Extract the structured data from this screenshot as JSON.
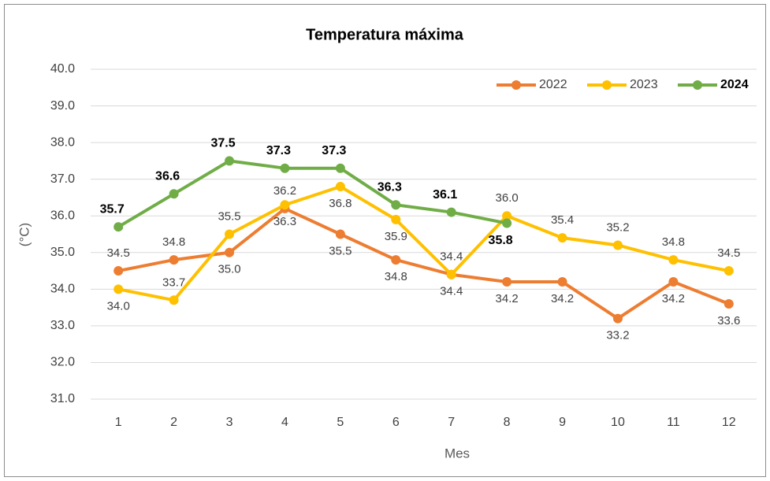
{
  "chart_data": {
    "type": "line",
    "title": "Temperatura máxima",
    "x_label": "Mes",
    "y_label": "(°C)",
    "categories": [
      1,
      2,
      3,
      4,
      5,
      6,
      7,
      8,
      9,
      10,
      11,
      12
    ],
    "series": [
      {
        "name": "2022",
        "color": "#ed7d31",
        "values": [
          34.5,
          34.8,
          35.0,
          36.2,
          35.5,
          34.8,
          34.4,
          34.2,
          34.2,
          33.2,
          34.2,
          33.6
        ],
        "value_labels": [
          "34.5",
          "34.8",
          "35.0",
          "36.2",
          "35.5",
          "34.8",
          "34.4",
          "34.2",
          "34.2",
          "33.2",
          "34.2",
          "33.6"
        ]
      },
      {
        "name": "2023",
        "color": "#ffc000",
        "values": [
          34.0,
          33.7,
          35.5,
          36.3,
          36.8,
          35.9,
          34.4,
          36.0,
          35.4,
          35.2,
          34.8,
          34.5
        ],
        "value_labels": [
          "34.0",
          "33.7",
          "35.5",
          "36.3",
          "36.8",
          "35.9",
          "34.4",
          "36.0",
          "35.4",
          "35.2",
          "34.8",
          "34.5"
        ]
      },
      {
        "name": "2024",
        "color": "#70ad47",
        "values": [
          35.7,
          36.6,
          37.5,
          37.3,
          37.3,
          36.3,
          36.1,
          35.8,
          null,
          null,
          null,
          null
        ],
        "value_labels": [
          "35.7",
          "36.6",
          "37.5",
          "37.3",
          "37.3",
          "36.3",
          "36.1",
          "35.8",
          null,
          null,
          null,
          null
        ]
      }
    ],
    "ylim": [
      31,
      40
    ],
    "yticks": [
      {
        "value": 31,
        "label": "31.0"
      },
      {
        "value": 32,
        "label": "32.0"
      },
      {
        "value": 33,
        "label": "33.0"
      },
      {
        "value": 34,
        "label": "34.0"
      },
      {
        "value": 35,
        "label": "35.0"
      },
      {
        "value": 36,
        "label": "36.0"
      },
      {
        "value": 37,
        "label": "37.0"
      },
      {
        "value": 38,
        "label": "38.0"
      },
      {
        "value": 39,
        "label": "39.0"
      },
      {
        "value": 40,
        "label": "40.0"
      }
    ],
    "grid": true,
    "legend": "top-right"
  }
}
